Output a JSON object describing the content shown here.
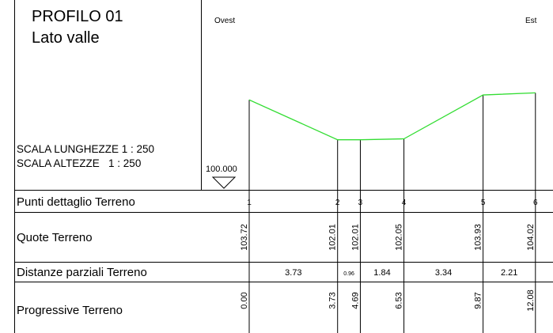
{
  "title_line1": "PROFILO 01",
  "title_line2": "Lato valle",
  "scale_lengths": "SCALA LUNGHEZZE 1 : 250",
  "scale_heights": "SCALA ALTEZZE   1 : 250",
  "datum_label": "100.000",
  "direction_left": "Ovest",
  "direction_right": "Est",
  "row_labels": {
    "points": "Punti dettaglio Terreno",
    "elevations": "Quote Terreno",
    "partial_distances": "Distanze parziali Terreno",
    "progressive": "Progressive Terreno"
  },
  "profile_color": "#33dd33",
  "chart_data": {
    "type": "line",
    "points": [
      "1",
      "2",
      "3",
      "4",
      "5",
      "6"
    ],
    "x_progressive": [
      0.0,
      3.73,
      4.69,
      6.53,
      9.87,
      12.08
    ],
    "x_progressive_labels": [
      "0.00",
      "3.73",
      "4.69",
      "6.53",
      "9.87",
      "12.08"
    ],
    "elevations": [
      103.72,
      102.01,
      102.01,
      102.05,
      103.93,
      104.02
    ],
    "elevation_labels": [
      "103.72",
      "102.01",
      "102.01",
      "102.05",
      "103.93",
      "104.02"
    ],
    "partial_distances": [
      "3.73",
      "0.96",
      "1.84",
      "3.34",
      "2.21"
    ],
    "datum": 100.0,
    "scale_lengths": "1:250",
    "scale_heights": "1:250"
  }
}
